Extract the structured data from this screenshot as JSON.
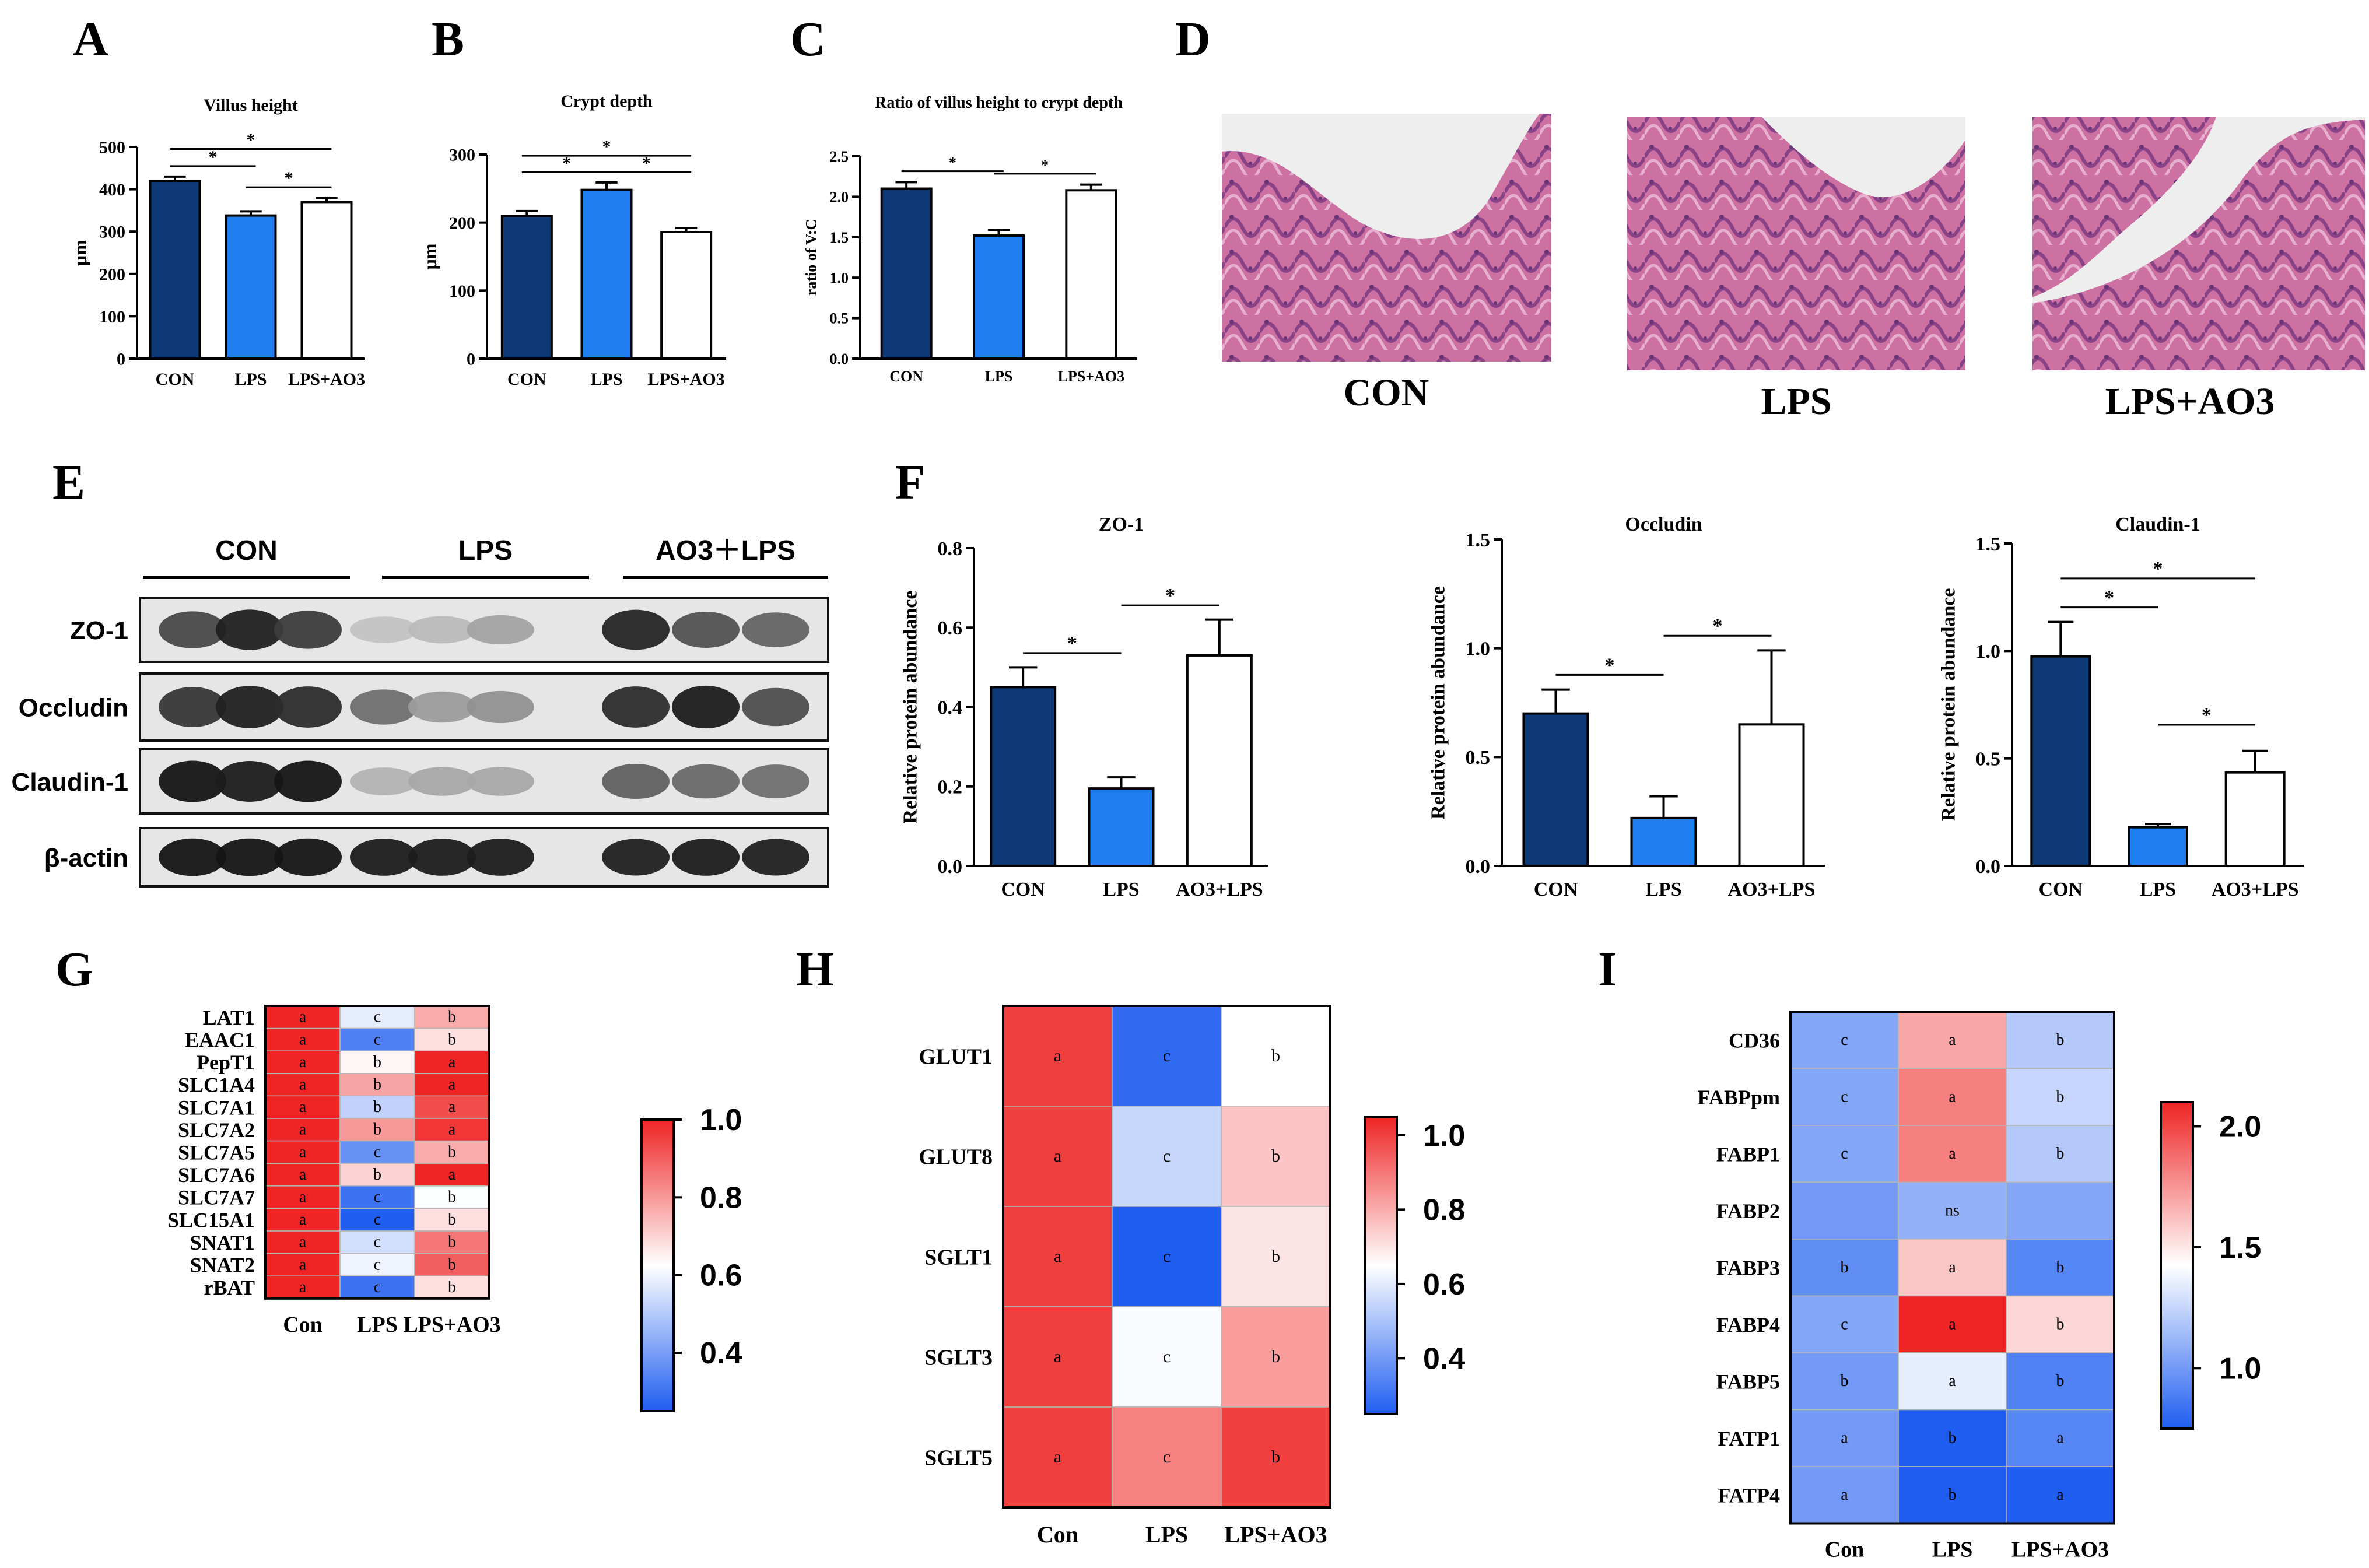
{
  "panel_labels": [
    "A",
    "B",
    "C",
    "D",
    "E",
    "F",
    "G",
    "H",
    "I"
  ],
  "histology": {
    "captions": [
      "CON",
      "LPS",
      "LPS+AO3"
    ]
  },
  "western_blot": {
    "group_labels": [
      "CON",
      "LPS",
      "AO3＋LPS"
    ],
    "rows": [
      {
        "label": "ZO-1",
        "intensities": [
          0.72,
          0.9,
          0.78,
          0.18,
          0.22,
          0.32,
          0.88,
          0.68,
          0.6
        ]
      },
      {
        "label": "Occludin",
        "intensities": [
          0.8,
          0.9,
          0.85,
          0.55,
          0.35,
          0.4,
          0.85,
          0.92,
          0.7
        ]
      },
      {
        "label": "Claudin-1",
        "intensities": [
          0.95,
          0.92,
          0.95,
          0.25,
          0.3,
          0.3,
          0.62,
          0.58,
          0.55
        ]
      },
      {
        "label": "β-actin",
        "intensities": [
          0.95,
          0.95,
          0.95,
          0.92,
          0.92,
          0.92,
          0.9,
          0.92,
          0.9
        ]
      }
    ]
  },
  "colors": {
    "con": "#0d3977",
    "lps": "#1f7ef0",
    "ao3": "#ffffff",
    "heat_low": "#1f5ef0",
    "heat_mid": "#ffffff",
    "heat_high": "#ef2424"
  },
  "chart_data": [
    {
      "id": "A",
      "type": "bar",
      "title": "Villus height",
      "ylabel": "μm",
      "categories": [
        "CON",
        "LPS",
        "LPS+AO3"
      ],
      "values": [
        420,
        338,
        370
      ],
      "errors": [
        10,
        10,
        10
      ],
      "ylim": [
        0,
        500
      ],
      "yticks": [
        "0",
        "100",
        "200",
        "300",
        "400",
        "500"
      ],
      "significance": [
        {
          "from": 0,
          "to": 1,
          "label": "*"
        },
        {
          "from": 0,
          "to": 2,
          "label": "*"
        },
        {
          "from": 1,
          "to": 2,
          "label": "*"
        }
      ]
    },
    {
      "id": "B",
      "type": "bar",
      "title": "Crypt depth",
      "ylabel": "μm",
      "categories": [
        "CON",
        "LPS",
        "LPS+AO3"
      ],
      "values": [
        210,
        248,
        186
      ],
      "errors": [
        7,
        11,
        6
      ],
      "ylim": [
        0,
        300
      ],
      "yticks": [
        "0",
        "100",
        "200",
        "300"
      ],
      "significance": [
        {
          "from": 0,
          "to": 1,
          "label": "*"
        },
        {
          "from": 0,
          "to": 2,
          "label": "*"
        },
        {
          "from": 1,
          "to": 2,
          "label": "*"
        }
      ]
    },
    {
      "id": "C",
      "type": "bar",
      "title": "Ratio of villus height to crypt depth",
      "ylabel": "ratio of V:C",
      "categories": [
        "CON",
        "LPS",
        "LPS+AO3"
      ],
      "values": [
        2.1,
        1.52,
        2.08
      ],
      "errors": [
        0.08,
        0.07,
        0.07
      ],
      "ylim": [
        0,
        2.5
      ],
      "yticks": [
        "0.0",
        "0.5",
        "1.0",
        "1.5",
        "2.0",
        "2.5"
      ],
      "significance": [
        {
          "from": 0,
          "to": 1,
          "label": "*"
        },
        {
          "from": 1,
          "to": 2,
          "label": "*"
        }
      ]
    },
    {
      "id": "F1",
      "type": "bar",
      "title": "ZO-1",
      "ylabel": "Relative protein abundance",
      "categories": [
        "CON",
        "LPS",
        "AO3+LPS"
      ],
      "values": [
        0.45,
        0.195,
        0.53
      ],
      "errors": [
        0.05,
        0.028,
        0.09
      ],
      "ylim": [
        0,
        0.8
      ],
      "yticks": [
        "0.0",
        "0.2",
        "0.4",
        "0.6",
        "0.8"
      ],
      "significance": [
        {
          "from": 0,
          "to": 1,
          "label": "*"
        },
        {
          "from": 1,
          "to": 2,
          "label": "*"
        }
      ]
    },
    {
      "id": "F2",
      "type": "bar",
      "title": "Occludin",
      "ylabel": "Relative protein abundance",
      "categories": [
        "CON",
        "LPS",
        "AO3+LPS"
      ],
      "values": [
        0.7,
        0.22,
        0.65
      ],
      "errors": [
        0.11,
        0.1,
        0.34
      ],
      "ylim": [
        0,
        1.5
      ],
      "yticks": [
        "0.0",
        "0.5",
        "1.0",
        "1.5"
      ],
      "significance": [
        {
          "from": 0,
          "to": 1,
          "label": "*"
        },
        {
          "from": 1,
          "to": 2,
          "label": "*"
        }
      ]
    },
    {
      "id": "F3",
      "type": "bar",
      "title": "Claudin-1",
      "ylabel": "Relative protein abundance",
      "categories": [
        "CON",
        "LPS",
        "AO3+LPS"
      ],
      "values": [
        0.975,
        0.18,
        0.435
      ],
      "errors": [
        0.16,
        0.015,
        0.1
      ],
      "ylim": [
        0,
        1.5
      ],
      "yticks": [
        "0.0",
        "0.5",
        "1.0",
        "1.5"
      ],
      "significance": [
        {
          "from": 0,
          "to": 1,
          "label": "*"
        },
        {
          "from": 0,
          "to": 2,
          "label": "*"
        },
        {
          "from": 1,
          "to": 2,
          "label": "*"
        }
      ]
    },
    {
      "id": "G",
      "type": "heatmap",
      "columns": [
        "Con",
        "LPS",
        "LPS+AO3"
      ],
      "rows": [
        "LAT1",
        "EAAC1",
        "PepT1",
        "SLC1A4",
        "SLC7A1",
        "SLC7A2",
        "SLC7A5",
        "SLC7A6",
        "SLC7A7",
        "SLC15A1",
        "SNAT1",
        "SNAT2",
        "rBAT"
      ],
      "values": [
        [
          1.0,
          0.58,
          0.77
        ],
        [
          1.0,
          0.33,
          0.68
        ],
        [
          1.0,
          0.64,
          1.0
        ],
        [
          1.0,
          0.78,
          1.0
        ],
        [
          1.0,
          0.52,
          0.93
        ],
        [
          1.0,
          0.8,
          0.97
        ],
        [
          1.0,
          0.37,
          0.77
        ],
        [
          1.0,
          0.7,
          1.0
        ],
        [
          1.0,
          0.3,
          0.62
        ],
        [
          1.0,
          0.25,
          0.68
        ],
        [
          1.0,
          0.55,
          0.86
        ],
        [
          1.0,
          0.6,
          0.9
        ],
        [
          1.0,
          0.3,
          0.68
        ]
      ],
      "letters": [
        [
          "a",
          "c",
          "b"
        ],
        [
          "a",
          "c",
          "b"
        ],
        [
          "a",
          "b",
          "a"
        ],
        [
          "a",
          "b",
          "a"
        ],
        [
          "a",
          "b",
          "a"
        ],
        [
          "a",
          "b",
          "a"
        ],
        [
          "a",
          "c",
          "b"
        ],
        [
          "a",
          "b",
          "a"
        ],
        [
          "a",
          "c",
          "b"
        ],
        [
          "a",
          "c",
          "b"
        ],
        [
          "a",
          "c",
          "b"
        ],
        [
          "a",
          "c",
          "b"
        ],
        [
          "a",
          "c",
          "b"
        ]
      ],
      "colorbar": {
        "min": 0.25,
        "max": 1.0,
        "ticks": [
          "1.0",
          "0.8",
          "0.6",
          "0.4"
        ]
      }
    },
    {
      "id": "H",
      "type": "heatmap",
      "columns": [
        "Con",
        "LPS",
        "LPS+AO3"
      ],
      "rows": [
        "GLUT1",
        "GLUT8",
        "SGLT1",
        "SGLT3",
        "SGLT5"
      ],
      "values": [
        [
          1.0,
          0.28,
          0.65
        ],
        [
          1.0,
          0.55,
          0.76
        ],
        [
          1.0,
          0.25,
          0.7
        ],
        [
          1.0,
          0.64,
          0.83
        ],
        [
          1.0,
          0.88,
          1.0
        ]
      ],
      "letters": [
        [
          "a",
          "c",
          "b"
        ],
        [
          "a",
          "c",
          "b"
        ],
        [
          "a",
          "c",
          "b"
        ],
        [
          "a",
          "c",
          "b"
        ],
        [
          "a",
          "c",
          "b"
        ]
      ],
      "colorbar": {
        "min": 0.25,
        "max": 1.05,
        "ticks": [
          "1.0",
          "0.8",
          "0.6",
          "0.4"
        ]
      }
    },
    {
      "id": "I",
      "type": "heatmap",
      "columns": [
        "Con",
        "LPS",
        "LPS+AO3"
      ],
      "rows": [
        "CD36",
        "FABPpm",
        "FABP1",
        "FABP2",
        "FABP3",
        "FABP4",
        "FABP5",
        "FATP1",
        "FATP4"
      ],
      "values": [
        [
          1.05,
          1.7,
          1.2
        ],
        [
          1.05,
          1.82,
          1.25
        ],
        [
          1.05,
          1.82,
          1.2
        ],
        [
          1.0,
          1.1,
          1.05
        ],
        [
          0.95,
          1.6,
          0.92
        ],
        [
          1.05,
          2.1,
          1.55
        ],
        [
          1.0,
          1.35,
          0.9
        ],
        [
          1.0,
          0.5,
          0.92
        ],
        [
          1.0,
          0.62,
          0.72
        ]
      ],
      "letters": [
        [
          "c",
          "a",
          "b"
        ],
        [
          "c",
          "a",
          "b"
        ],
        [
          "c",
          "a",
          "b"
        ],
        [
          "",
          "ns",
          ""
        ],
        [
          "b",
          "a",
          "b"
        ],
        [
          "c",
          "a",
          "b"
        ],
        [
          "b",
          "a",
          "b"
        ],
        [
          "a",
          "b",
          "a"
        ],
        [
          "a",
          "b",
          "a"
        ]
      ],
      "colorbar": {
        "min": 0.75,
        "max": 2.1,
        "ticks": [
          "2.0",
          "1.5",
          "1.0"
        ]
      }
    }
  ]
}
